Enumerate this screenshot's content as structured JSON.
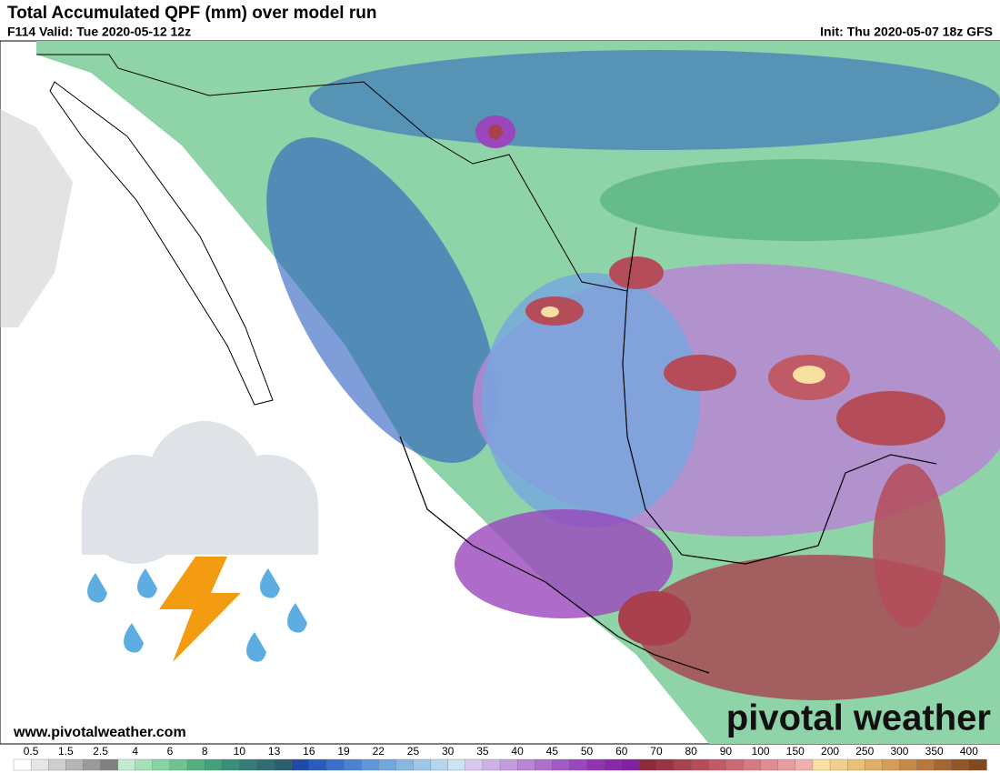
{
  "header": {
    "title": "Total Accumulated QPF (mm) over model run",
    "valid": "F114 Valid: Tue 2020-05-12 12z",
    "init": "Init: Thu 2020-05-07 18z GFS"
  },
  "footer": {
    "url": "www.pivotalweather.com",
    "logo": "pivotal weather"
  },
  "legend": {
    "ticks": [
      "0.5",
      "1.5",
      "2.5",
      "4",
      "6",
      "8",
      "10",
      "13",
      "16",
      "19",
      "22",
      "25",
      "30",
      "35",
      "40",
      "45",
      "50",
      "60",
      "70",
      "80",
      "90",
      "100",
      "150",
      "200",
      "250",
      "300",
      "350",
      "400"
    ],
    "colors": [
      "#ffffff",
      "#e6e6e6",
      "#cfcfcf",
      "#b5b5b5",
      "#9a9a9a",
      "#808080",
      "#c2ecd0",
      "#a5e0b8",
      "#88d3a2",
      "#6cc48e",
      "#54b07e",
      "#43a07a",
      "#3a8f7a",
      "#347e78",
      "#2f6d73",
      "#2a5f70",
      "#1f4aa8",
      "#2a5cc0",
      "#3a6fcc",
      "#4c82d4",
      "#6095da",
      "#74a6de",
      "#8ab6e2",
      "#a0c6e8",
      "#b6d6ee",
      "#cce4f2",
      "#d8c8ec",
      "#cdb2e4",
      "#c29cdc",
      "#b886d4",
      "#ae70cc",
      "#a45ac4",
      "#9a46bc",
      "#9034b4",
      "#8a28ac",
      "#8420a4",
      "#8c2a3a",
      "#9a3444",
      "#a8404e",
      "#b44c5a",
      "#c05a66",
      "#cc6a74",
      "#d67a82",
      "#e08c90",
      "#e89ea0",
      "#f0b0b0",
      "#f8e0a0",
      "#f0d08a",
      "#e8c078",
      "#e0ae66",
      "#d89c56",
      "#c88a48",
      "#b8783c",
      "#a66632",
      "#945628",
      "#824820"
    ]
  }
}
